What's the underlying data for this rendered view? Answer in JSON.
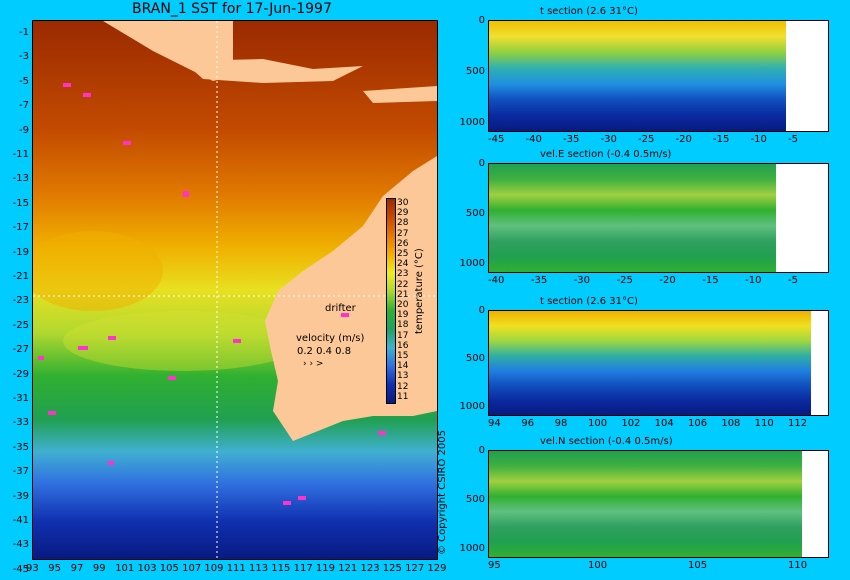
{
  "map": {
    "title": "BRAN_1 SST for 17-Jun-1997",
    "lat_ticks": [
      "-1",
      "-3",
      "-5",
      "-7",
      "-9",
      "-11",
      "-13",
      "-15",
      "-17",
      "-19",
      "-21",
      "-23",
      "-25",
      "-27",
      "-29",
      "-31",
      "-33",
      "-35",
      "-37",
      "-39",
      "-41",
      "-43",
      "-45"
    ],
    "lon_ticks": [
      "93",
      "95",
      "97",
      "99",
      "101",
      "103",
      "105",
      "107",
      "109",
      "111",
      "113",
      "115",
      "117",
      "119",
      "121",
      "123",
      "125",
      "127",
      "129"
    ],
    "drifter_label": "drifter",
    "velocity_label": "velocity (m/s)",
    "velocity_scale": "0.2 0.4 0.8",
    "copyright": "© Copyright CSIRO 2005",
    "colorbar": {
      "label": "temperature (°C)",
      "ticks": [
        "30",
        "29",
        "28",
        "27",
        "26",
        "25",
        "24",
        "23",
        "22",
        "21",
        "20",
        "19",
        "18",
        "17",
        "16",
        "15",
        "14",
        "13",
        "12",
        "11"
      ]
    }
  },
  "sections": [
    {
      "title": "t section (2.6       31°C)",
      "depth_ticks": [
        "0",
        "500",
        "1000"
      ],
      "x_ticks": [
        "-45",
        "-40",
        "-35",
        "-30",
        "-25",
        "-20",
        "-15",
        "-10",
        "-5"
      ]
    },
    {
      "title": "vel.E section (-0.4       0.5m/s)",
      "depth_ticks": [
        "0",
        "500",
        "1000"
      ],
      "x_ticks": [
        "-40",
        "-35",
        "-30",
        "-25",
        "-20",
        "-15",
        "-10",
        "-5"
      ]
    },
    {
      "title": "t section (2.6       31°C)",
      "depth_ticks": [
        "0",
        "500",
        "1000"
      ],
      "x_ticks": [
        "94",
        "96",
        "98",
        "100",
        "102",
        "104",
        "106",
        "108",
        "110",
        "112"
      ]
    },
    {
      "title": "vel.N section (-0.4       0.5m/s)",
      "depth_ticks": [
        "0",
        "500",
        "1000"
      ],
      "x_ticks": [
        "95",
        "100",
        "105",
        "110"
      ]
    }
  ]
}
